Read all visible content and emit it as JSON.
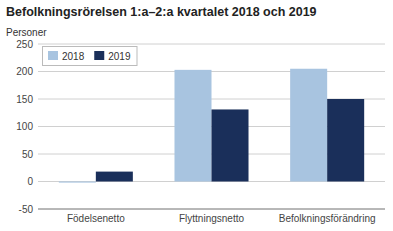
{
  "chart_data": {
    "type": "bar",
    "title": "Befolkningsrörelsen 1:a–2:a kvartalet 2018 och 2019",
    "ylabel": "Personer",
    "categories": [
      "Födelsenetto",
      "Flyttningsnetto",
      "Befolkningsförändring"
    ],
    "series": [
      {
        "name": "2018",
        "color": "#a8c4e0",
        "values": [
          -2,
          203,
          205
        ]
      },
      {
        "name": "2019",
        "color": "#1a2f5a",
        "values": [
          18,
          131,
          150
        ]
      }
    ],
    "ylim": [
      -50,
      250
    ],
    "yticks": [
      -50,
      0,
      50,
      100,
      150,
      200,
      250
    ],
    "grid": true,
    "legend": "upper left"
  }
}
